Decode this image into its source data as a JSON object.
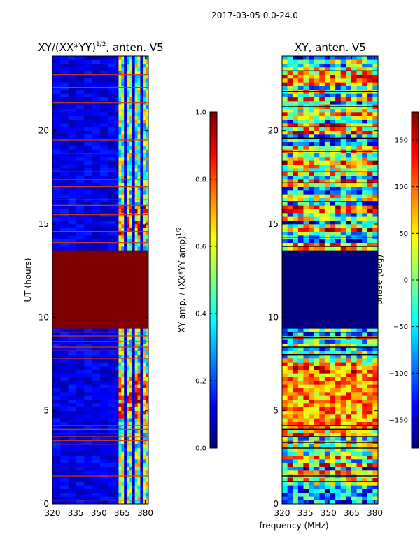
{
  "suptitle": "2017-03-05 0.0-24.0",
  "xlabel": "frequency (MHz)",
  "colors": {
    "jet": [
      "#00007f",
      "#0000ff",
      "#007fff",
      "#00ffff",
      "#7fff7f",
      "#ffff00",
      "#ff7f00",
      "#ff0000",
      "#7f0000"
    ],
    "bad_row": "#c83c14",
    "frame": "#000000"
  },
  "chart_data": [
    {
      "type": "heatmap",
      "title_main": "XY/(XX*YY)",
      "title_sup": "1/2",
      "title_tail": ", anten. V5",
      "ylabel": "UT (hours)",
      "xlim": [
        320,
        382
      ],
      "ylim": [
        0,
        24
      ],
      "xticks": [
        "320",
        "335",
        "350",
        "365",
        "380"
      ],
      "xtick_values": [
        320,
        335,
        350,
        365,
        380
      ],
      "yticks": [
        "0",
        "5",
        "10",
        "15",
        "20"
      ],
      "ytick_values": [
        0,
        5,
        10,
        15,
        20
      ],
      "colorbar": {
        "label_main": "XY amp. / (XX*YY amp)",
        "label_sup": "1/2",
        "range": [
          0.0,
          1.0
        ],
        "ticks": [
          "0.0",
          "0.2",
          "0.4",
          "0.6",
          "0.8",
          "1.0"
        ],
        "tick_values": [
          0.0,
          0.2,
          0.4,
          0.6,
          0.8,
          1.0
        ]
      },
      "saturated_block_ut": [
        9.5,
        13.6
      ],
      "saturated_value": 1.0,
      "bright_band_mhz": [
        361,
        382
      ],
      "flagged_rows_ut": [
        0.2,
        1.5,
        3.2,
        3.4,
        3.6,
        3.8,
        4.0,
        4.2,
        7.8,
        8.2,
        8.4,
        8.7,
        9.0,
        9.2,
        14.0,
        14.6,
        15.5,
        16.0,
        16.3,
        17.0,
        17.4,
        17.8,
        18.8,
        19.5,
        21.5,
        22.3,
        23.0
      ]
    },
    {
      "type": "heatmap",
      "title": "XY, anten. V5",
      "xlim": [
        320,
        382
      ],
      "ylim": [
        0,
        24
      ],
      "xticks": [
        "320",
        "335",
        "350",
        "365",
        "380"
      ],
      "xtick_values": [
        320,
        335,
        350,
        365,
        380
      ],
      "yticks": [
        "0",
        "5",
        "10",
        "15",
        "20"
      ],
      "ytick_values": [
        0,
        5,
        10,
        15,
        20
      ],
      "colorbar": {
        "label": "phase (deg)",
        "range": [
          -180,
          180
        ],
        "ticks": [
          "−150",
          "−100",
          "−50",
          "0",
          "50",
          "100",
          "150"
        ],
        "tick_values": [
          -150,
          -100,
          -50,
          0,
          50,
          100,
          150
        ]
      },
      "saturated_block_ut": [
        9.5,
        13.6
      ],
      "saturated_value": -180,
      "flagged_rows_ut": [
        1.2,
        1.5,
        3.0,
        3.3,
        3.6,
        4.0,
        4.2,
        8.0,
        8.4,
        8.9,
        9.2,
        13.8,
        14.3,
        16.2,
        17.2,
        17.8,
        18.9,
        19.6,
        20.2,
        21.3,
        22.1,
        23.2
      ]
    }
  ]
}
